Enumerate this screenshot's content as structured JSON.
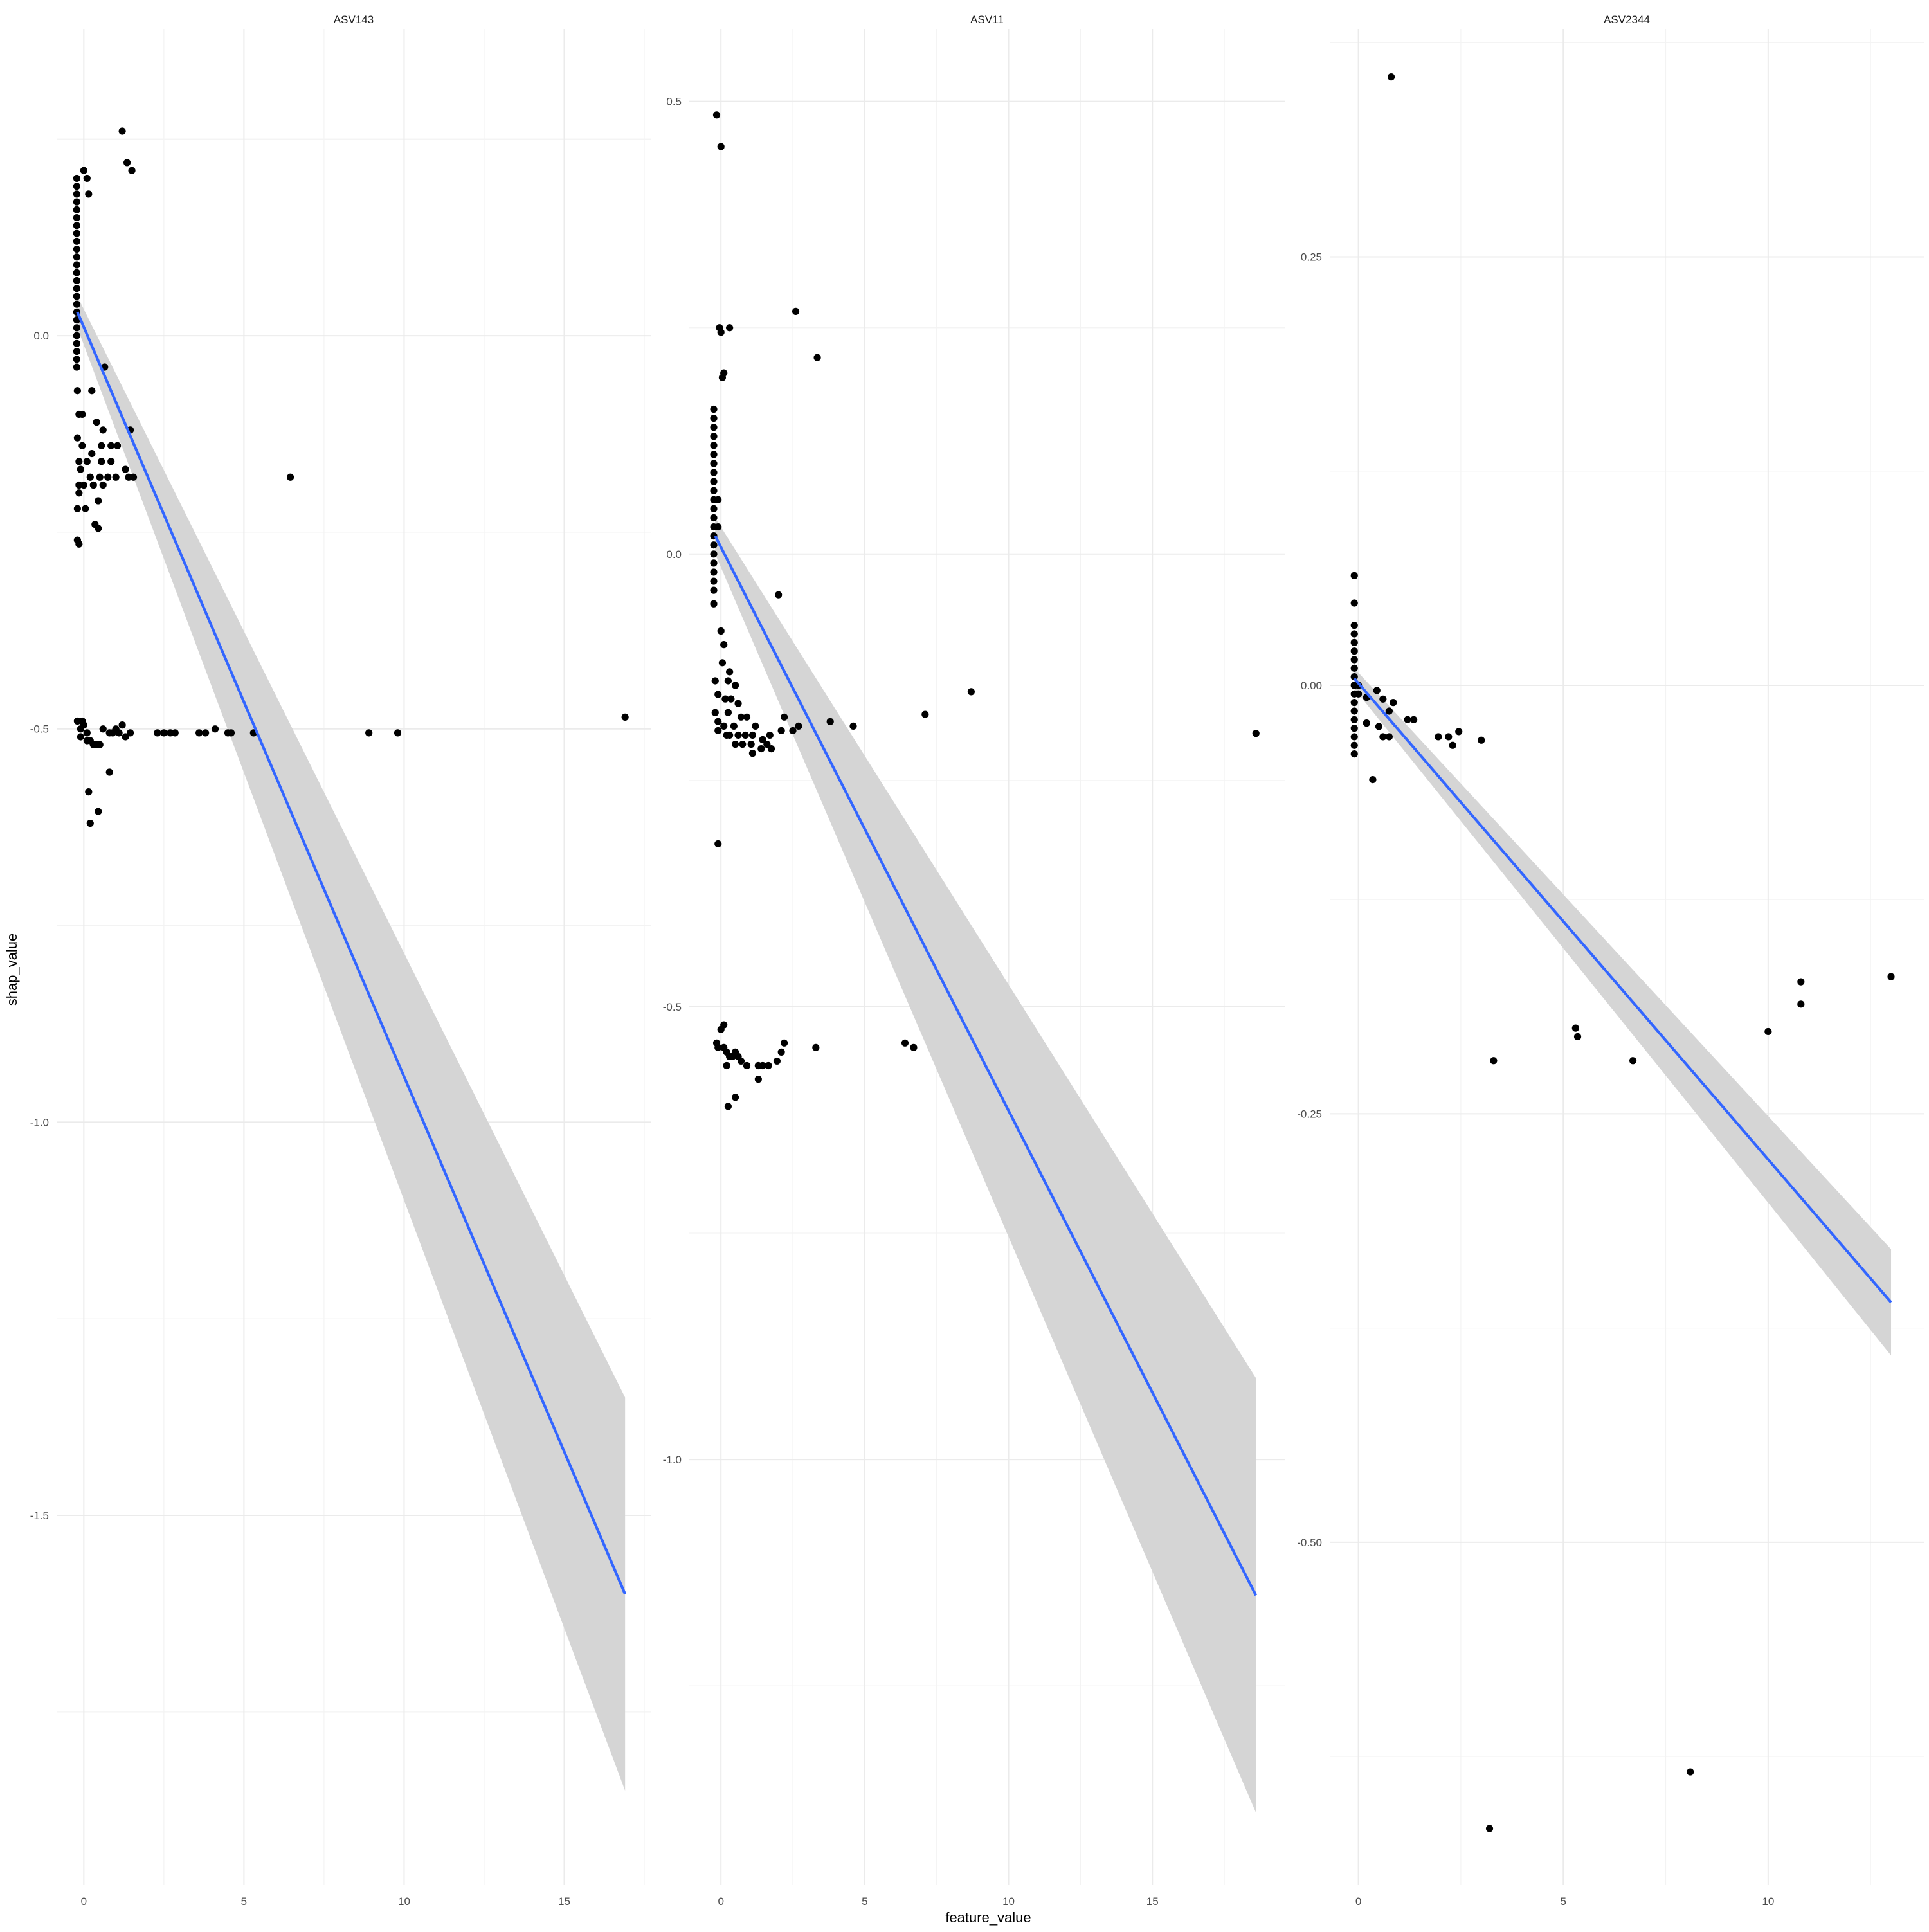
{
  "chart_data": {
    "type": "scatter",
    "xlabel": "feature_value",
    "ylabel": "shap_value",
    "grid": true,
    "colors": {
      "points": "#000000",
      "fit_line": "#3366FF",
      "ribbon": "#d5d5d5",
      "grid": "#ebebeb"
    },
    "panels": [
      {
        "title": "ASV143",
        "xlim": [
          -0.85,
          17.7
        ],
        "ylim": [
          -1.97,
          0.39
        ],
        "x_ticks": [
          0,
          5,
          10,
          15
        ],
        "x_tick_labels": [
          "0",
          "5",
          "10",
          "15"
        ],
        "y_ticks": [
          0.0,
          -0.5,
          -1.0,
          -1.5
        ],
        "y_tick_labels": [
          "0.0",
          "-0.5",
          "-1.0",
          "-1.5"
        ],
        "fit": {
          "x": [
            -0.2,
            16.9
          ],
          "y": [
            0.03,
            -1.6
          ]
        },
        "ribbon": {
          "x": [
            -0.2,
            16.9
          ],
          "upper": [
            0.05,
            -1.35
          ],
          "lower": [
            0.01,
            -1.85
          ]
        },
        "points": [
          [
            1.2,
            0.26
          ],
          [
            1.35,
            0.22
          ],
          [
            1.5,
            0.21
          ],
          [
            0.0,
            0.21
          ],
          [
            0.1,
            0.2
          ],
          [
            0.15,
            0.18
          ],
          [
            -0.22,
            0.2
          ],
          [
            -0.22,
            0.19
          ],
          [
            -0.22,
            0.18
          ],
          [
            -0.22,
            0.17
          ],
          [
            -0.22,
            0.16
          ],
          [
            -0.22,
            0.15
          ],
          [
            -0.22,
            0.14
          ],
          [
            -0.22,
            0.13
          ],
          [
            -0.22,
            0.12
          ],
          [
            -0.22,
            0.11
          ],
          [
            -0.22,
            0.1
          ],
          [
            -0.22,
            0.09
          ],
          [
            -0.22,
            0.08
          ],
          [
            -0.22,
            0.07
          ],
          [
            -0.22,
            0.06
          ],
          [
            -0.22,
            0.05
          ],
          [
            -0.22,
            0.04
          ],
          [
            -0.22,
            0.03
          ],
          [
            -0.22,
            0.02
          ],
          [
            -0.22,
            0.01
          ],
          [
            -0.22,
            0.0
          ],
          [
            -0.22,
            -0.01
          ],
          [
            -0.22,
            -0.02
          ],
          [
            -0.22,
            -0.03
          ],
          [
            -0.22,
            -0.04
          ],
          [
            0.65,
            -0.04
          ],
          [
            -0.2,
            -0.07
          ],
          [
            0.25,
            -0.07
          ],
          [
            -0.15,
            -0.1
          ],
          [
            -0.05,
            -0.1
          ],
          [
            0.4,
            -0.11
          ],
          [
            0.6,
            -0.12
          ],
          [
            1.45,
            -0.12
          ],
          [
            -0.2,
            -0.13
          ],
          [
            -0.05,
            -0.14
          ],
          [
            0.55,
            -0.14
          ],
          [
            0.85,
            -0.14
          ],
          [
            1.05,
            -0.14
          ],
          [
            0.25,
            -0.15
          ],
          [
            -0.15,
            -0.16
          ],
          [
            0.1,
            -0.16
          ],
          [
            0.55,
            -0.16
          ],
          [
            0.85,
            -0.16
          ],
          [
            1.3,
            -0.17
          ],
          [
            -0.1,
            -0.17
          ],
          [
            0.2,
            -0.18
          ],
          [
            0.5,
            -0.18
          ],
          [
            0.75,
            -0.18
          ],
          [
            1.0,
            -0.18
          ],
          [
            1.4,
            -0.18
          ],
          [
            1.55,
            -0.18
          ],
          [
            -0.15,
            -0.19
          ],
          [
            0.0,
            -0.19
          ],
          [
            0.3,
            -0.19
          ],
          [
            0.6,
            -0.19
          ],
          [
            -0.15,
            -0.2
          ],
          [
            0.45,
            -0.21
          ],
          [
            -0.2,
            -0.22
          ],
          [
            0.05,
            -0.22
          ],
          [
            6.45,
            -0.18
          ],
          [
            0.35,
            -0.24
          ],
          [
            0.45,
            -0.245
          ],
          [
            -0.2,
            -0.26
          ],
          [
            -0.15,
            -0.265
          ],
          [
            -0.2,
            -0.49
          ],
          [
            -0.05,
            -0.49
          ],
          [
            0.0,
            -0.495
          ],
          [
            1.2,
            -0.495
          ],
          [
            0.6,
            -0.5
          ],
          [
            1.45,
            -0.505
          ],
          [
            -0.1,
            -0.5
          ],
          [
            -0.1,
            -0.51
          ],
          [
            0.1,
            -0.505
          ],
          [
            0.1,
            -0.515
          ],
          [
            0.2,
            -0.515
          ],
          [
            0.3,
            -0.52
          ],
          [
            0.4,
            -0.52
          ],
          [
            0.5,
            -0.52
          ],
          [
            0.8,
            -0.505
          ],
          [
            0.9,
            -0.505
          ],
          [
            1.0,
            -0.5
          ],
          [
            1.1,
            -0.505
          ],
          [
            1.3,
            -0.51
          ],
          [
            2.3,
            -0.505
          ],
          [
            2.5,
            -0.505
          ],
          [
            2.7,
            -0.505
          ],
          [
            2.85,
            -0.505
          ],
          [
            3.6,
            -0.505
          ],
          [
            3.8,
            -0.505
          ],
          [
            4.1,
            -0.5
          ],
          [
            4.5,
            -0.505
          ],
          [
            4.6,
            -0.505
          ],
          [
            5.3,
            -0.505
          ],
          [
            8.9,
            -0.505
          ],
          [
            9.8,
            -0.505
          ],
          [
            16.9,
            -0.485
          ],
          [
            0.8,
            -0.555
          ],
          [
            0.15,
            -0.58
          ],
          [
            0.45,
            -0.605
          ],
          [
            0.2,
            -0.62
          ]
        ]
      },
      {
        "title": "ASV11",
        "xlim": [
          -1.1,
          19.6
        ],
        "ylim": [
          -1.47,
          0.58
        ],
        "x_ticks": [
          0,
          5,
          10,
          15
        ],
        "x_tick_labels": [
          "0",
          "5",
          "10",
          "15"
        ],
        "y_ticks": [
          0.5,
          0.0,
          -0.5,
          -1.0
        ],
        "y_tick_labels": [
          "0.5",
          "0.0",
          "-0.5",
          "-1.0"
        ],
        "fit": {
          "x": [
            -0.2,
            18.6
          ],
          "y": [
            0.02,
            -1.15
          ]
        },
        "ribbon": {
          "x": [
            -0.2,
            18.6
          ],
          "upper": [
            0.04,
            -0.91
          ],
          "lower": [
            0.0,
            -1.39
          ]
        },
        "points": [
          [
            -0.15,
            0.485
          ],
          [
            0.0,
            0.45
          ],
          [
            2.6,
            0.268
          ],
          [
            0.3,
            0.25
          ],
          [
            -0.05,
            0.25
          ],
          [
            0.0,
            0.245
          ],
          [
            0.1,
            0.2
          ],
          [
            0.05,
            0.195
          ],
          [
            3.35,
            0.217
          ],
          [
            -0.25,
            0.16
          ],
          [
            -0.25,
            0.15
          ],
          [
            -0.25,
            0.14
          ],
          [
            -0.25,
            0.13
          ],
          [
            -0.25,
            0.12
          ],
          [
            -0.25,
            0.11
          ],
          [
            -0.25,
            0.1
          ],
          [
            -0.25,
            0.09
          ],
          [
            -0.25,
            0.08
          ],
          [
            -0.25,
            0.07
          ],
          [
            -0.25,
            0.06
          ],
          [
            -0.25,
            0.05
          ],
          [
            -0.25,
            0.04
          ],
          [
            -0.25,
            0.03
          ],
          [
            -0.25,
            0.02
          ],
          [
            -0.25,
            0.01
          ],
          [
            -0.1,
            0.06
          ],
          [
            -0.1,
            0.03
          ],
          [
            -0.25,
            0.0
          ],
          [
            -0.25,
            -0.01
          ],
          [
            -0.25,
            -0.02
          ],
          [
            -0.25,
            -0.03
          ],
          [
            -0.25,
            -0.04
          ],
          [
            -0.25,
            -0.055
          ],
          [
            2.0,
            -0.045
          ],
          [
            0.0,
            -0.085
          ],
          [
            0.1,
            -0.1
          ],
          [
            0.05,
            -0.12
          ],
          [
            0.3,
            -0.13
          ],
          [
            0.25,
            -0.14
          ],
          [
            -0.2,
            -0.14
          ],
          [
            0.5,
            -0.145
          ],
          [
            8.7,
            -0.152
          ],
          [
            -0.1,
            -0.155
          ],
          [
            0.15,
            -0.16
          ],
          [
            0.35,
            -0.16
          ],
          [
            0.6,
            -0.165
          ],
          [
            -0.2,
            -0.175
          ],
          [
            0.25,
            -0.175
          ],
          [
            7.1,
            -0.177
          ],
          [
            2.2,
            -0.18
          ],
          [
            3.8,
            -0.185
          ],
          [
            0.7,
            -0.18
          ],
          [
            0.9,
            -0.18
          ],
          [
            4.6,
            -0.19
          ],
          [
            2.7,
            -0.19
          ],
          [
            1.2,
            -0.19
          ],
          [
            0.45,
            -0.19
          ],
          [
            -0.1,
            -0.185
          ],
          [
            -0.1,
            -0.195
          ],
          [
            0.1,
            -0.19
          ],
          [
            0.3,
            -0.2
          ],
          [
            2.1,
            -0.195
          ],
          [
            2.5,
            -0.195
          ],
          [
            0.6,
            -0.2
          ],
          [
            0.85,
            -0.2
          ],
          [
            1.1,
            -0.2
          ],
          [
            1.45,
            -0.205
          ],
          [
            1.7,
            -0.2
          ],
          [
            0.2,
            -0.2
          ],
          [
            0.5,
            -0.21
          ],
          [
            0.75,
            -0.21
          ],
          [
            1.05,
            -0.21
          ],
          [
            1.6,
            -0.21
          ],
          [
            1.75,
            -0.215
          ],
          [
            18.6,
            -0.198
          ],
          [
            1.4,
            -0.215
          ],
          [
            1.1,
            -0.22
          ],
          [
            -0.1,
            -0.32
          ],
          [
            0.0,
            -0.525
          ],
          [
            0.1,
            -0.52
          ],
          [
            -0.15,
            -0.54
          ],
          [
            -0.1,
            -0.545
          ],
          [
            0.1,
            -0.545
          ],
          [
            0.2,
            -0.55
          ],
          [
            0.3,
            -0.555
          ],
          [
            0.5,
            -0.55
          ],
          [
            0.6,
            -0.555
          ],
          [
            0.7,
            -0.56
          ],
          [
            2.2,
            -0.54
          ],
          [
            2.1,
            -0.55
          ],
          [
            3.3,
            -0.545
          ],
          [
            6.4,
            -0.54
          ],
          [
            6.7,
            -0.545
          ],
          [
            0.4,
            -0.555
          ],
          [
            0.9,
            -0.565
          ],
          [
            1.3,
            -0.565
          ],
          [
            1.45,
            -0.565
          ],
          [
            1.65,
            -0.565
          ],
          [
            1.95,
            -0.56
          ],
          [
            0.2,
            -0.565
          ],
          [
            1.3,
            -0.58
          ],
          [
            0.5,
            -0.6
          ],
          [
            0.25,
            -0.61
          ]
        ]
      },
      {
        "title": "ASV2344",
        "xlim": [
          -0.7,
          13.8
        ],
        "ylim": [
          -0.7,
          0.383
        ],
        "x_ticks": [
          0,
          5,
          10
        ],
        "x_tick_labels": [
          "0",
          "5",
          "10"
        ],
        "y_ticks": [
          0.25,
          0.0,
          -0.25,
          -0.5
        ],
        "y_tick_labels": [
          "0.25",
          "0.00",
          "-0.25",
          "-0.50"
        ],
        "fit": {
          "x": [
            -0.1,
            13.0
          ],
          "y": [
            0.004,
            -0.36
          ]
        },
        "ribbon": {
          "x": [
            -0.1,
            13.0
          ],
          "upper": [
            0.01,
            -0.329
          ],
          "lower": [
            -0.002,
            -0.391
          ]
        },
        "points": [
          [
            0.8,
            0.355
          ],
          [
            -0.1,
            0.064
          ],
          [
            -0.1,
            0.048
          ],
          [
            -0.1,
            0.035
          ],
          [
            -0.1,
            0.03
          ],
          [
            -0.1,
            0.025
          ],
          [
            -0.1,
            0.02
          ],
          [
            -0.1,
            0.015
          ],
          [
            -0.1,
            0.01
          ],
          [
            -0.1,
            0.005
          ],
          [
            -0.1,
            0.0
          ],
          [
            -0.1,
            -0.005
          ],
          [
            -0.1,
            -0.01
          ],
          [
            -0.1,
            -0.015
          ],
          [
            -0.1,
            -0.02
          ],
          [
            -0.1,
            -0.025
          ],
          [
            -0.1,
            -0.03
          ],
          [
            -0.1,
            -0.035
          ],
          [
            -0.1,
            -0.04
          ],
          [
            0.0,
            0.0
          ],
          [
            0.0,
            -0.005
          ],
          [
            0.2,
            -0.007
          ],
          [
            0.45,
            -0.003
          ],
          [
            0.6,
            -0.008
          ],
          [
            0.85,
            -0.01
          ],
          [
            0.75,
            -0.015
          ],
          [
            0.2,
            -0.022
          ],
          [
            0.5,
            -0.024
          ],
          [
            1.2,
            -0.02
          ],
          [
            1.35,
            -0.02
          ],
          [
            0.6,
            -0.03
          ],
          [
            0.75,
            -0.03
          ],
          [
            1.95,
            -0.03
          ],
          [
            2.2,
            -0.03
          ],
          [
            2.45,
            -0.027
          ],
          [
            2.3,
            -0.035
          ],
          [
            3.0,
            -0.032
          ],
          [
            0.35,
            -0.055
          ],
          [
            3.3,
            -0.219
          ],
          [
            5.3,
            -0.2
          ],
          [
            5.35,
            -0.205
          ],
          [
            6.7,
            -0.219
          ],
          [
            10.0,
            -0.202
          ],
          [
            10.8,
            -0.173
          ],
          [
            10.8,
            -0.186
          ],
          [
            13.0,
            -0.17
          ],
          [
            8.1,
            -0.634
          ],
          [
            3.2,
            -0.667
          ]
        ]
      }
    ]
  }
}
